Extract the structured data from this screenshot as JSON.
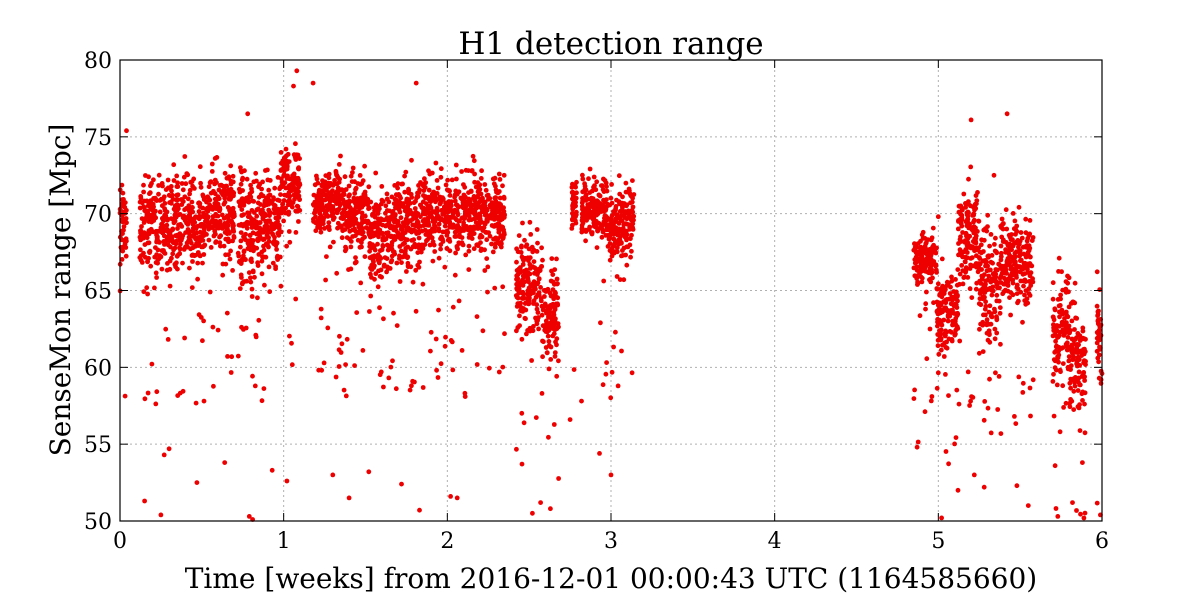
{
  "chart_data": {
    "type": "scatter",
    "title": "H1 detection range",
    "xlabel": "Time [weeks] from 2016-12-01 00:00:43 UTC (1164585660)",
    "ylabel": "SenseMon range [Mpc]",
    "xlim": [
      0,
      6
    ],
    "ylim": [
      50,
      80
    ],
    "xticks": [
      0,
      1,
      2,
      3,
      4,
      5,
      6
    ],
    "yticks": [
      50,
      55,
      60,
      65,
      70,
      75,
      80
    ],
    "grid": true,
    "marker_color": "#ee0000",
    "series": [
      {
        "segments": [
          {
            "x0": 0.0,
            "x1": 0.04,
            "center": 69.0,
            "spread": 3.0
          },
          {
            "x0": 0.12,
            "x1": 0.22,
            "center": 69.5,
            "spread": 3.5
          },
          {
            "x0": 0.22,
            "x1": 0.35,
            "center": 69.0,
            "spread": 4.0
          },
          {
            "x0": 0.35,
            "x1": 0.52,
            "center": 69.5,
            "spread": 3.5
          },
          {
            "x0": 0.52,
            "x1": 0.7,
            "center": 70.0,
            "spread": 3.5
          },
          {
            "x0": 0.72,
            "x1": 0.84,
            "center": 69.0,
            "spread": 4.5
          },
          {
            "x0": 0.84,
            "x1": 0.98,
            "center": 69.5,
            "spread": 3.5
          },
          {
            "x0": 0.98,
            "x1": 1.1,
            "center": 72.0,
            "spread": 3.0
          },
          {
            "x0": 1.18,
            "x1": 1.35,
            "center": 71.0,
            "spread": 2.5
          },
          {
            "x0": 1.35,
            "x1": 1.52,
            "center": 70.0,
            "spread": 3.0
          },
          {
            "x0": 1.52,
            "x1": 1.68,
            "center": 68.5,
            "spread": 3.5
          },
          {
            "x0": 1.68,
            "x1": 1.85,
            "center": 69.5,
            "spread": 3.5
          },
          {
            "x0": 1.85,
            "x1": 2.05,
            "center": 70.0,
            "spread": 3.0
          },
          {
            "x0": 2.05,
            "x1": 2.35,
            "center": 70.0,
            "spread": 3.0
          },
          {
            "x0": 2.42,
            "x1": 2.58,
            "center": 65.5,
            "spread": 3.5
          },
          {
            "x0": 2.58,
            "x1": 2.68,
            "center": 63.5,
            "spread": 4.0
          },
          {
            "x0": 2.76,
            "x1": 2.79,
            "center": 70.5,
            "spread": 2.0
          },
          {
            "x0": 2.82,
            "x1": 2.98,
            "center": 70.5,
            "spread": 2.5
          },
          {
            "x0": 2.98,
            "x1": 3.14,
            "center": 69.5,
            "spread": 3.0
          },
          {
            "x0": 4.85,
            "x1": 4.99,
            "center": 67.0,
            "spread": 2.0
          },
          {
            "x0": 4.99,
            "x1": 5.12,
            "center": 63.5,
            "spread": 3.0
          },
          {
            "x0": 5.12,
            "x1": 5.25,
            "center": 68.5,
            "spread": 4.0
          },
          {
            "x0": 5.25,
            "x1": 5.38,
            "center": 65.5,
            "spread": 4.0
          },
          {
            "x0": 5.38,
            "x1": 5.58,
            "center": 67.0,
            "spread": 3.5
          },
          {
            "x0": 5.7,
            "x1": 5.8,
            "center": 62.5,
            "spread": 4.0
          },
          {
            "x0": 5.8,
            "x1": 5.9,
            "center": 60.5,
            "spread": 4.0
          },
          {
            "x0": 5.97,
            "x1": 6.0,
            "center": 62.0,
            "spread": 4.0
          }
        ],
        "outliers": [
          [
            0.04,
            75.4
          ],
          [
            0.15,
            51.3
          ],
          [
            0.25,
            50.4
          ],
          [
            0.27,
            54.3
          ],
          [
            0.3,
            54.7
          ],
          [
            0.47,
            52.5
          ],
          [
            0.64,
            53.8
          ],
          [
            0.79,
            50.3
          ],
          [
            0.81,
            50.1
          ],
          [
            0.78,
            76.5
          ],
          [
            0.93,
            53.3
          ],
          [
            1.02,
            52.6
          ],
          [
            1.06,
            78.3
          ],
          [
            1.08,
            79.3
          ],
          [
            1.18,
            78.5
          ],
          [
            1.3,
            53.0
          ],
          [
            1.4,
            51.5
          ],
          [
            1.52,
            53.2
          ],
          [
            1.72,
            52.4
          ],
          [
            1.83,
            50.7
          ],
          [
            1.81,
            78.5
          ],
          [
            2.02,
            51.6
          ],
          [
            2.06,
            51.5
          ],
          [
            2.52,
            50.5
          ],
          [
            2.57,
            51.2
          ],
          [
            2.63,
            50.8
          ],
          [
            2.75,
            56.6
          ],
          [
            2.82,
            57.8
          ],
          [
            2.93,
            54.4
          ],
          [
            3.0,
            53.0
          ],
          [
            4.87,
            54.8
          ],
          [
            5.02,
            50.2
          ],
          [
            5.12,
            52.0
          ],
          [
            5.2,
            76.1
          ],
          [
            5.22,
            53.0
          ],
          [
            5.28,
            52.2
          ],
          [
            5.42,
            76.5
          ],
          [
            5.48,
            52.3
          ],
          [
            5.55,
            51.0
          ],
          [
            5.73,
            50.3
          ],
          [
            5.82,
            51.2
          ],
          [
            5.88,
            53.8
          ],
          [
            5.99,
            50.4
          ],
          [
            5.34,
            72.5
          ],
          [
            5.0,
            69.8
          ]
        ]
      }
    ]
  }
}
